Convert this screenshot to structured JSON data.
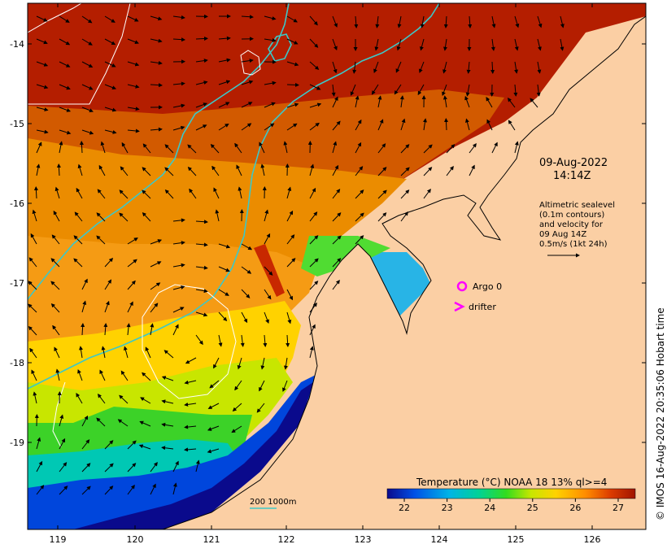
{
  "map": {
    "timestamp_date": "09-Aug-2022",
    "timestamp_time": "14:14Z",
    "legend_lines": [
      "Altimetric sealevel",
      "(0.1m contours)",
      "and velocity for",
      "09 Aug 14Z",
      "0.5m/s (1kt 24h)"
    ],
    "argo_label": "Argo 0",
    "drifter_label": "drifter",
    "scale_label": "200  1000m",
    "credit": "© IMOS 16-Aug-2022 20:35:06 Hobart time",
    "colorbar_title": "Temperature (°C) NOAA 18 13% ql>=4",
    "colors": {
      "argo_marker": "#ff00ff",
      "drifter_marker": "#ff00ff",
      "isobath": "#3cc8c8",
      "land": "#fbcfa4",
      "contour": "#ffffff"
    }
  },
  "axes": {
    "x_ticks": [
      "119",
      "120",
      "121",
      "122",
      "123",
      "124",
      "125",
      "126"
    ],
    "y_ticks": [
      "-14",
      "-15",
      "-16",
      "-17",
      "-18",
      "-19"
    ]
  },
  "colorbar": {
    "ticks": [
      "22",
      "23",
      "24",
      "25",
      "26",
      "27"
    ],
    "range": [
      21.6,
      27.4
    ],
    "stops": [
      "#0a0a8c",
      "#0050e6",
      "#00b4e6",
      "#00d296",
      "#32dc1e",
      "#c8e600",
      "#ffd200",
      "#ff8c00",
      "#dc3c00",
      "#a01400"
    ]
  }
}
